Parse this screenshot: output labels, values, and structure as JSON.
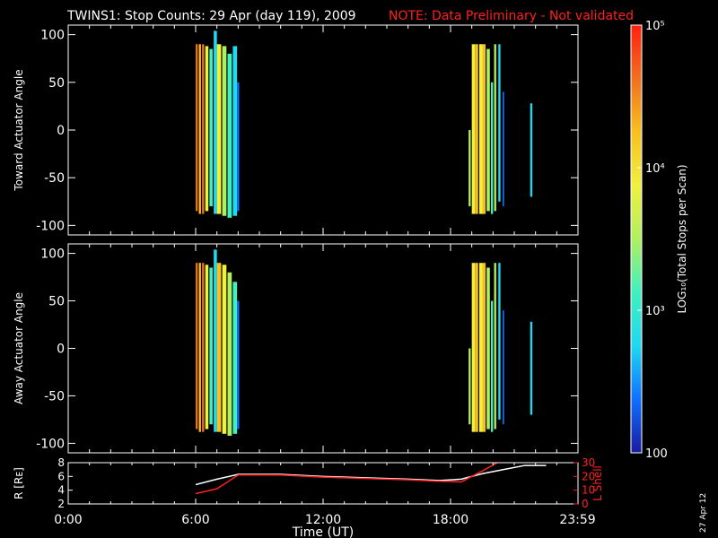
{
  "title": {
    "main": "TWINS1: Stop Counts: 29 Apr (day 119), 2009",
    "note": "NOTE: Data Preliminary - Not validated",
    "note_color": "#ff2020"
  },
  "date_stamp": "27 Apr 12",
  "colorbar": {
    "label": "LOG₁₀(Total Stops per Scan)",
    "ticks": [
      {
        "value": 100,
        "label": "100"
      },
      {
        "value": 1000,
        "label": "10³"
      },
      {
        "value": 10000,
        "label": "10⁴"
      },
      {
        "value": 100000,
        "label": "10⁵"
      }
    ],
    "scale": "log",
    "range": [
      100,
      100000
    ],
    "colors": [
      "#1a1aa0",
      "#1070ff",
      "#20d8f0",
      "#40f0c0",
      "#b0f060",
      "#f0f040",
      "#f8c020",
      "#f07020",
      "#ff2010"
    ]
  },
  "chart_data": [
    {
      "type": "heatmap",
      "title": "",
      "ylabel": "Toward Actuator Angle",
      "xlim": [
        0,
        24
      ],
      "ylim": [
        -110,
        110
      ],
      "yticks": [
        -100,
        -50,
        0,
        50,
        100
      ],
      "stripes": [
        {
          "t0": 6.0,
          "t1": 6.1,
          "y0": -85,
          "y1": 90,
          "color": "#f07020"
        },
        {
          "t0": 6.15,
          "t1": 6.25,
          "y0": -88,
          "y1": 90,
          "color": "#f8c020"
        },
        {
          "t0": 6.3,
          "t1": 6.4,
          "y0": -88,
          "y1": 90,
          "color": "#f07020"
        },
        {
          "t0": 6.45,
          "t1": 6.6,
          "y0": -85,
          "y1": 88,
          "color": "#f0f040"
        },
        {
          "t0": 6.65,
          "t1": 6.8,
          "y0": -80,
          "y1": 85,
          "color": "#40f0c0"
        },
        {
          "t0": 6.85,
          "t1": 7.0,
          "y0": -88,
          "y1": 104,
          "color": "#20d8f0"
        },
        {
          "t0": 7.0,
          "t1": 7.2,
          "y0": -88,
          "y1": 90,
          "color": "#f0f040"
        },
        {
          "t0": 7.25,
          "t1": 7.45,
          "y0": -90,
          "y1": 88,
          "color": "#b0f060"
        },
        {
          "t0": 7.5,
          "t1": 7.7,
          "y0": -92,
          "y1": 80,
          "color": "#40f0c0"
        },
        {
          "t0": 7.75,
          "t1": 7.95,
          "y0": -90,
          "y1": 88,
          "color": "#20d8f0"
        },
        {
          "t0": 7.95,
          "t1": 8.05,
          "y0": -85,
          "y1": 50,
          "color": "#1070ff"
        },
        {
          "t0": 18.85,
          "t1": 18.95,
          "y0": -80,
          "y1": 0,
          "color": "#b0f060"
        },
        {
          "t0": 19.0,
          "t1": 19.15,
          "y0": -88,
          "y1": 90,
          "color": "#f0f040"
        },
        {
          "t0": 19.15,
          "t1": 19.3,
          "y0": -88,
          "y1": 90,
          "color": "#f8c020"
        },
        {
          "t0": 19.35,
          "t1": 19.5,
          "y0": -88,
          "y1": 90,
          "color": "#f0f040"
        },
        {
          "t0": 19.5,
          "t1": 19.65,
          "y0": -88,
          "y1": 90,
          "color": "#f8c020"
        },
        {
          "t0": 19.7,
          "t1": 19.85,
          "y0": -85,
          "y1": 85,
          "color": "#b0f060"
        },
        {
          "t0": 19.9,
          "t1": 20.0,
          "y0": -88,
          "y1": 50,
          "color": "#40f0c0"
        },
        {
          "t0": 20.05,
          "t1": 20.15,
          "y0": -85,
          "y1": 90,
          "color": "#b0f060"
        },
        {
          "t0": 20.25,
          "t1": 20.35,
          "y0": -75,
          "y1": 90,
          "color": "#20d8f0"
        },
        {
          "t0": 20.45,
          "t1": 20.52,
          "y0": -80,
          "y1": 40,
          "color": "#1070ff"
        },
        {
          "t0": 21.75,
          "t1": 21.85,
          "y0": -70,
          "y1": 28,
          "color": "#20d8f0"
        }
      ]
    },
    {
      "type": "heatmap",
      "title": "",
      "ylabel": "Away Actuator Angle",
      "xlim": [
        0,
        24
      ],
      "ylim": [
        -110,
        110
      ],
      "yticks": [
        -100,
        -50,
        0,
        50,
        100
      ],
      "stripes": [
        {
          "t0": 6.0,
          "t1": 6.1,
          "y0": -85,
          "y1": 90,
          "color": "#f07020"
        },
        {
          "t0": 6.15,
          "t1": 6.25,
          "y0": -88,
          "y1": 90,
          "color": "#f8c020"
        },
        {
          "t0": 6.3,
          "t1": 6.4,
          "y0": -88,
          "y1": 90,
          "color": "#f07020"
        },
        {
          "t0": 6.45,
          "t1": 6.6,
          "y0": -85,
          "y1": 88,
          "color": "#f0f040"
        },
        {
          "t0": 6.65,
          "t1": 6.8,
          "y0": -80,
          "y1": 85,
          "color": "#40f0c0"
        },
        {
          "t0": 6.85,
          "t1": 7.0,
          "y0": -88,
          "y1": 104,
          "color": "#20d8f0"
        },
        {
          "t0": 7.0,
          "t1": 7.2,
          "y0": -88,
          "y1": 90,
          "color": "#f8c020"
        },
        {
          "t0": 7.25,
          "t1": 7.45,
          "y0": -90,
          "y1": 88,
          "color": "#f0f040"
        },
        {
          "t0": 7.5,
          "t1": 7.7,
          "y0": -92,
          "y1": 80,
          "color": "#b0f060"
        },
        {
          "t0": 7.75,
          "t1": 7.95,
          "y0": -90,
          "y1": 70,
          "color": "#40f0c0"
        },
        {
          "t0": 7.95,
          "t1": 8.05,
          "y0": -85,
          "y1": 50,
          "color": "#1070ff"
        },
        {
          "t0": 18.85,
          "t1": 18.95,
          "y0": -80,
          "y1": 0,
          "color": "#b0f060"
        },
        {
          "t0": 19.0,
          "t1": 19.15,
          "y0": -88,
          "y1": 90,
          "color": "#f0f040"
        },
        {
          "t0": 19.15,
          "t1": 19.3,
          "y0": -88,
          "y1": 90,
          "color": "#f8c020"
        },
        {
          "t0": 19.35,
          "t1": 19.5,
          "y0": -88,
          "y1": 90,
          "color": "#f0f040"
        },
        {
          "t0": 19.5,
          "t1": 19.65,
          "y0": -88,
          "y1": 90,
          "color": "#f8c020"
        },
        {
          "t0": 19.7,
          "t1": 19.85,
          "y0": -85,
          "y1": 85,
          "color": "#b0f060"
        },
        {
          "t0": 19.9,
          "t1": 20.0,
          "y0": -88,
          "y1": 50,
          "color": "#40f0c0"
        },
        {
          "t0": 20.05,
          "t1": 20.15,
          "y0": -85,
          "y1": 90,
          "color": "#b0f060"
        },
        {
          "t0": 20.25,
          "t1": 20.35,
          "y0": -75,
          "y1": 90,
          "color": "#20d8f0"
        },
        {
          "t0": 20.45,
          "t1": 20.52,
          "y0": -80,
          "y1": 40,
          "color": "#1070ff"
        },
        {
          "t0": 21.75,
          "t1": 21.85,
          "y0": -70,
          "y1": 28,
          "color": "#20d8f0"
        }
      ]
    },
    {
      "type": "line",
      "title": "",
      "xlabel": "Time (UT)",
      "ylabel": "R [Rᴇ]",
      "ylabel_right": "L Shell",
      "xlim": [
        0,
        24
      ],
      "ylim": [
        2,
        8
      ],
      "ylim_right": [
        0,
        30
      ],
      "yticks": [
        2,
        4,
        6,
        8
      ],
      "yticks_right": [
        0,
        10,
        20,
        30
      ],
      "xticks": [
        {
          "value": 0,
          "label": "0:00"
        },
        {
          "value": 6,
          "label": "6:00"
        },
        {
          "value": 12,
          "label": "12:00"
        },
        {
          "value": 18,
          "label": "18:00"
        },
        {
          "value": 23.98,
          "label": "23:59"
        }
      ],
      "series": [
        {
          "axis": "left",
          "color": "#ffffff",
          "x": [
            6.0,
            7.0,
            8.0,
            10.0,
            12.0,
            14.0,
            16.0,
            17.5,
            18.5,
            19.5,
            20.5,
            21.5,
            22.5
          ],
          "y": [
            4.8,
            5.6,
            6.3,
            6.3,
            6.0,
            5.8,
            5.6,
            5.4,
            5.6,
            6.4,
            7.0,
            7.6,
            7.6
          ]
        },
        {
          "axis": "right",
          "color": "#ff2020",
          "x": [
            6.0,
            7.0,
            8.0,
            10.0,
            12.0,
            14.0,
            16.0,
            17.5,
            18.5,
            19.5,
            20.2
          ],
          "y": [
            7.5,
            11,
            21,
            21,
            19.5,
            18.5,
            17.5,
            16.5,
            16,
            24,
            30
          ]
        }
      ]
    }
  ]
}
